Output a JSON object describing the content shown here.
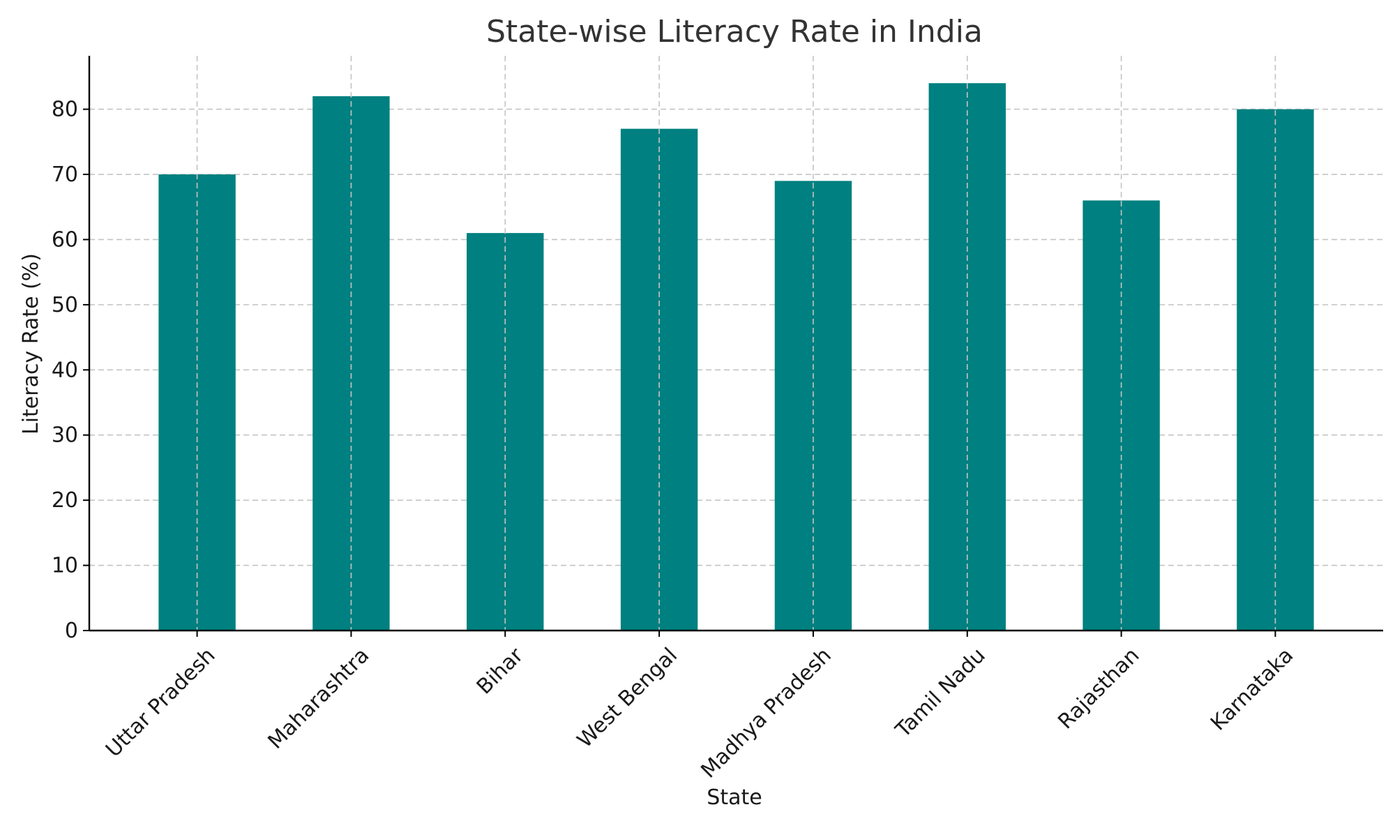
{
  "chart_data": {
    "type": "bar",
    "title": "State-wise Literacy Rate in India",
    "xlabel": "State",
    "ylabel": "Literacy Rate (%)",
    "categories": [
      "Uttar Pradesh",
      "Maharashtra",
      "Bihar",
      "West Bengal",
      "Madhya Pradesh",
      "Tamil Nadu",
      "Rajasthan",
      "Karnataka"
    ],
    "values": [
      70,
      82,
      61,
      77,
      69,
      84,
      66,
      80
    ],
    "yticks": [
      "0",
      "10",
      "20",
      "30",
      "40",
      "50",
      "60",
      "70",
      "80"
    ],
    "ylim": [
      0,
      88.2
    ],
    "grid": true,
    "bar_color": "#008080",
    "x_tick_rotation_deg": -45
  }
}
